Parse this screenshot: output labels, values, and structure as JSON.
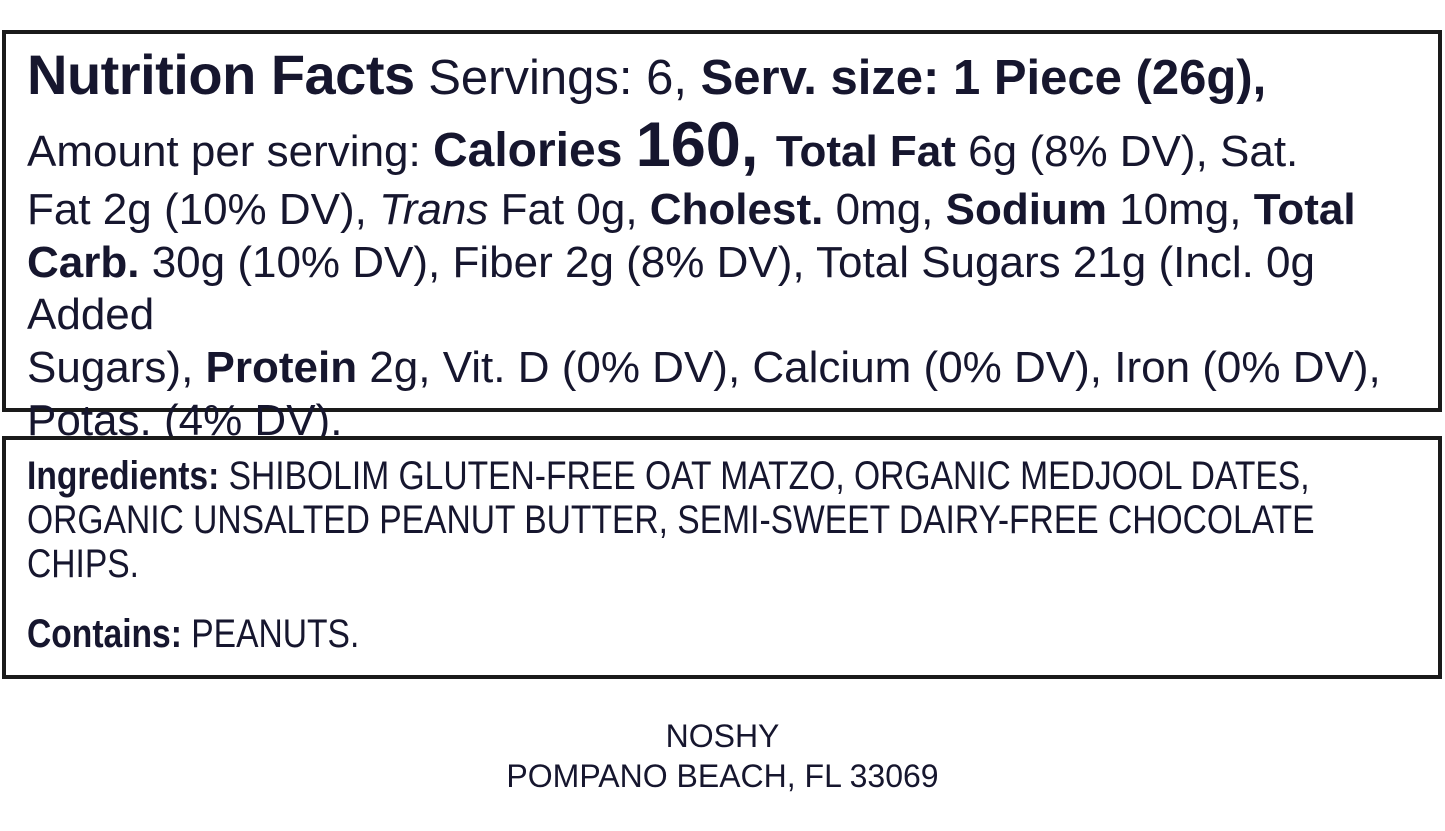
{
  "colors": {
    "text": "#16162e",
    "border": "#1a1a1a",
    "background": "#ffffff"
  },
  "nutrition_facts": {
    "line1": {
      "title": "Nutrition Facts",
      "servings": " Servings: 6, ",
      "serving_size": "Serv. size: 1 Piece (26g),"
    },
    "line2": {
      "amount_label": "Amount per serving: ",
      "calories_label": "Calories ",
      "calories_value": "160, ",
      "total_fat_label": "Total Fat ",
      "total_fat_value": "6g (8% DV), Sat."
    },
    "line3": {
      "sat_fat_value": "Fat 2g (10% DV), ",
      "trans_word": "Trans",
      "trans_fat_value": " Fat 0g, ",
      "cholesterol_label": "Cholest. ",
      "cholesterol_value": "0mg, ",
      "sodium_label": "Sodium ",
      "sodium_value": "10mg, ",
      "total_carb_label_part1": "Total"
    },
    "line4": {
      "total_carb_label_part2": "Carb. ",
      "carb_fiber_sugars_value": "30g (10% DV), Fiber 2g (8% DV), Total Sugars 21g (Incl. 0g Added"
    },
    "line5": {
      "sugars_tail": "Sugars), ",
      "protein_label": "Protein ",
      "protein_vitamins_value": "2g, Vit. D (0% DV), Calcium (0% DV), Iron (0% DV),"
    },
    "line6": {
      "potassium_value": "Potas. (4% DV)."
    }
  },
  "ingredients_box": {
    "ingredients_label": "Ingredients:",
    "ingredients_line1": " SHIBOLIM GLUTEN-FREE OAT MATZO, ORGANIC MEDJOOL DATES,",
    "ingredients_line2": "ORGANIC UNSALTED PEANUT BUTTER, SEMI-SWEET DAIRY-FREE CHOCOLATE",
    "ingredients_line3": "CHIPS.",
    "contains_label": "Contains:",
    "contains_value": " PEANUTS."
  },
  "footer": {
    "brand": "NOSHY",
    "address": "POMPANO BEACH, FL 33069"
  }
}
